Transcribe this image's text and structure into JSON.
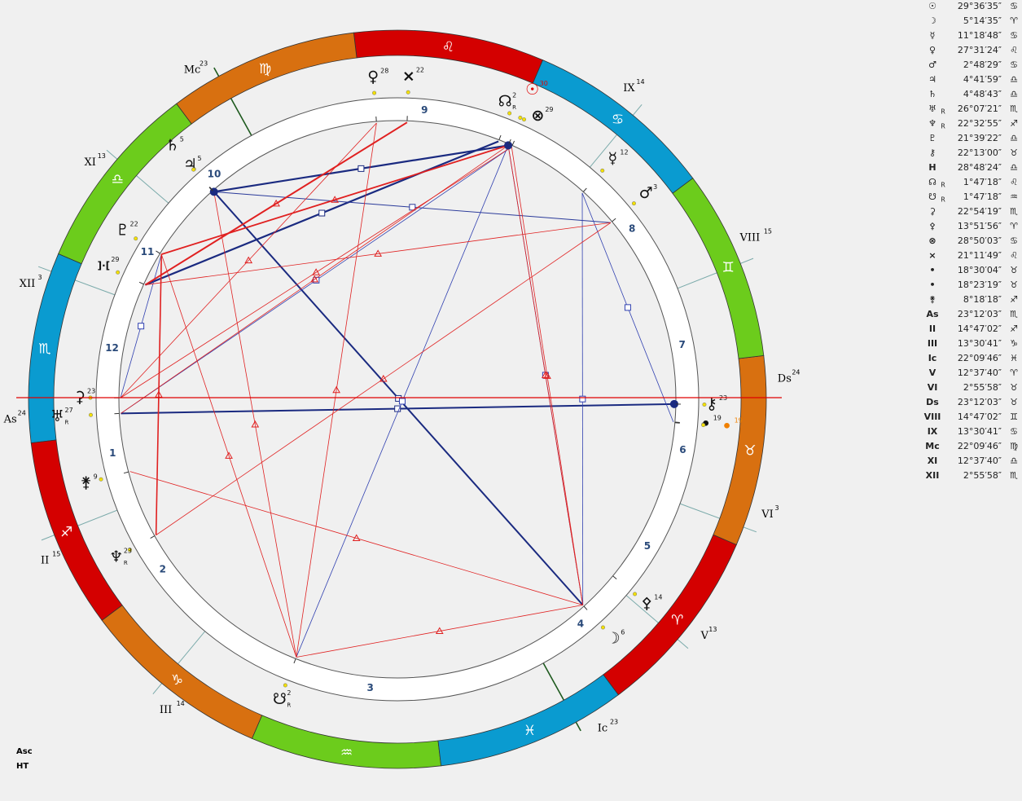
{
  "table": {
    "rows": [
      {
        "glyph": "☉",
        "position": "29°36′35″",
        "sign": "♋"
      },
      {
        "glyph": "☽",
        "position": "5°14′35″",
        "sign": "♈"
      },
      {
        "glyph": "☿",
        "position": "11°18′48″",
        "sign": "♋"
      },
      {
        "glyph": "♀",
        "position": "27°31′24″",
        "sign": "♌"
      },
      {
        "glyph": "♂",
        "position": "2°48′29″",
        "sign": "♋"
      },
      {
        "glyph": "♃",
        "position": "4°41′59″",
        "sign": "♎"
      },
      {
        "glyph": "♄",
        "position": "4°48′43″",
        "sign": "♎"
      },
      {
        "glyph": "♅",
        "retro": "R",
        "position": "26°07′21″",
        "sign": "♏"
      },
      {
        "glyph": "♆",
        "retro": "R",
        "position": "22°32′55″",
        "sign": "♐"
      },
      {
        "glyph": "♇",
        "position": "21°39′22″",
        "sign": "♎"
      },
      {
        "glyph": "⚷",
        "position": "22°13′00″",
        "sign": "♉"
      },
      {
        "glyph": "H",
        "position": "28°48′24″",
        "sign": "♎"
      },
      {
        "glyph": "☊",
        "retro": "R",
        "position": "1°47′18″",
        "sign": "♌"
      },
      {
        "glyph": "☋",
        "retro": "R",
        "position": "1°47′18″",
        "sign": "♒"
      },
      {
        "glyph": "⚳",
        "position": "22°54′19″",
        "sign": "♏"
      },
      {
        "glyph": "⚴",
        "position": "13°51′56″",
        "sign": "♈"
      },
      {
        "glyph": "⊗",
        "position": "28°50′03″",
        "sign": "♋"
      },
      {
        "glyph": "×",
        "position": "21°11′49″",
        "sign": "♌"
      },
      {
        "glyph": "•",
        "position": "18°30′04″",
        "sign": "♉"
      },
      {
        "glyph": "•",
        "position": "18°23′19″",
        "sign": "♉"
      },
      {
        "glyph": "⚵",
        "position": "8°18′18″",
        "sign": "♐"
      },
      {
        "glyph": "As",
        "position": "23°12′03″",
        "sign": "♏"
      },
      {
        "glyph": "II",
        "position": "14°47′02″",
        "sign": "♐"
      },
      {
        "glyph": "III",
        "position": "13°30′41″",
        "sign": "♑"
      },
      {
        "glyph": "Ic",
        "position": "22°09′46″",
        "sign": "♓"
      },
      {
        "glyph": "V",
        "position": "12°37′40″",
        "sign": "♈"
      },
      {
        "glyph": "VI",
        "position": "2°55′58″",
        "sign": "♉"
      },
      {
        "glyph": "Ds",
        "position": "23°12′03″",
        "sign": "♉"
      },
      {
        "glyph": "VIII",
        "position": "14°47′02″",
        "sign": "♊"
      },
      {
        "glyph": "IX",
        "position": "13°30′41″",
        "sign": "♋"
      },
      {
        "glyph": "Mc",
        "position": "22°09′46″",
        "sign": "♍"
      },
      {
        "glyph": "XI",
        "position": "12°37′40″",
        "sign": "♎"
      },
      {
        "glyph": "XII",
        "position": "2°55′58″",
        "sign": "♏"
      }
    ]
  },
  "zodiac": {
    "signs": [
      "♈",
      "♉",
      "♊",
      "♋",
      "♌",
      "♍",
      "♎",
      "♏",
      "♐",
      "♑",
      "♒",
      "♓"
    ],
    "colors": [
      "#d40000",
      "#d87010",
      "#6ccc1c",
      "#0a9bd0",
      "#d40000",
      "#d87010",
      "#6ccc1c",
      "#0a9bd0",
      "#d40000",
      "#d87010",
      "#6ccc1c",
      "#0a9bd0"
    ]
  },
  "cusps": [
    {
      "label": "As",
      "degree": "24"
    },
    {
      "label": "II",
      "degree": "15"
    },
    {
      "label": "III",
      "degree": "14"
    },
    {
      "label": "Ic",
      "degree": "23"
    },
    {
      "label": "V",
      "degree": "13"
    },
    {
      "label": "VI",
      "degree": "3"
    },
    {
      "label": "Ds",
      "degree": "24"
    },
    {
      "label": "VIII",
      "degree": "15"
    },
    {
      "label": "IX",
      "degree": "14"
    },
    {
      "label": "Mc",
      "degree": "23"
    },
    {
      "label": "XI",
      "degree": "13"
    },
    {
      "label": "XII",
      "degree": "3"
    }
  ],
  "house_numbers": [
    "1",
    "2",
    "3",
    "4",
    "5",
    "6",
    "7",
    "8",
    "9",
    "10",
    "11",
    "12"
  ],
  "planets": [
    {
      "glyph": "☉",
      "degree": "30",
      "color": "#e00000"
    },
    {
      "glyph": "☽",
      "degree": "6"
    },
    {
      "glyph": "☿",
      "degree": "12"
    },
    {
      "glyph": "♀",
      "degree": "28"
    },
    {
      "glyph": "♂",
      "degree": "3"
    },
    {
      "glyph": "♃",
      "degree": "5"
    },
    {
      "glyph": "♄",
      "degree": "5"
    },
    {
      "glyph": "♅",
      "degree": "27",
      "retro": "R"
    },
    {
      "glyph": "♆",
      "degree": "23",
      "retro": "R"
    },
    {
      "glyph": "♇",
      "degree": "22"
    },
    {
      "glyph": "⚷",
      "degree": "23"
    },
    {
      "glyph": "]·[",
      "degree": "29"
    },
    {
      "glyph": "☊",
      "degree": "2",
      "retro": "R"
    },
    {
      "glyph": "☋",
      "degree": "2",
      "retro": "R"
    },
    {
      "glyph": "⚳",
      "degree": "23"
    },
    {
      "glyph": "⚴",
      "degree": "14"
    },
    {
      "glyph": "⊗",
      "degree": "29"
    },
    {
      "glyph": "×",
      "degree": "22"
    },
    {
      "glyph": "•",
      "degree": "19"
    },
    {
      "glyph": "•",
      "degree": "19",
      "color": "#f08000"
    },
    {
      "glyph": "⚵",
      "degree": "9"
    }
  ],
  "footer": [
    "Asc",
    "HT"
  ]
}
